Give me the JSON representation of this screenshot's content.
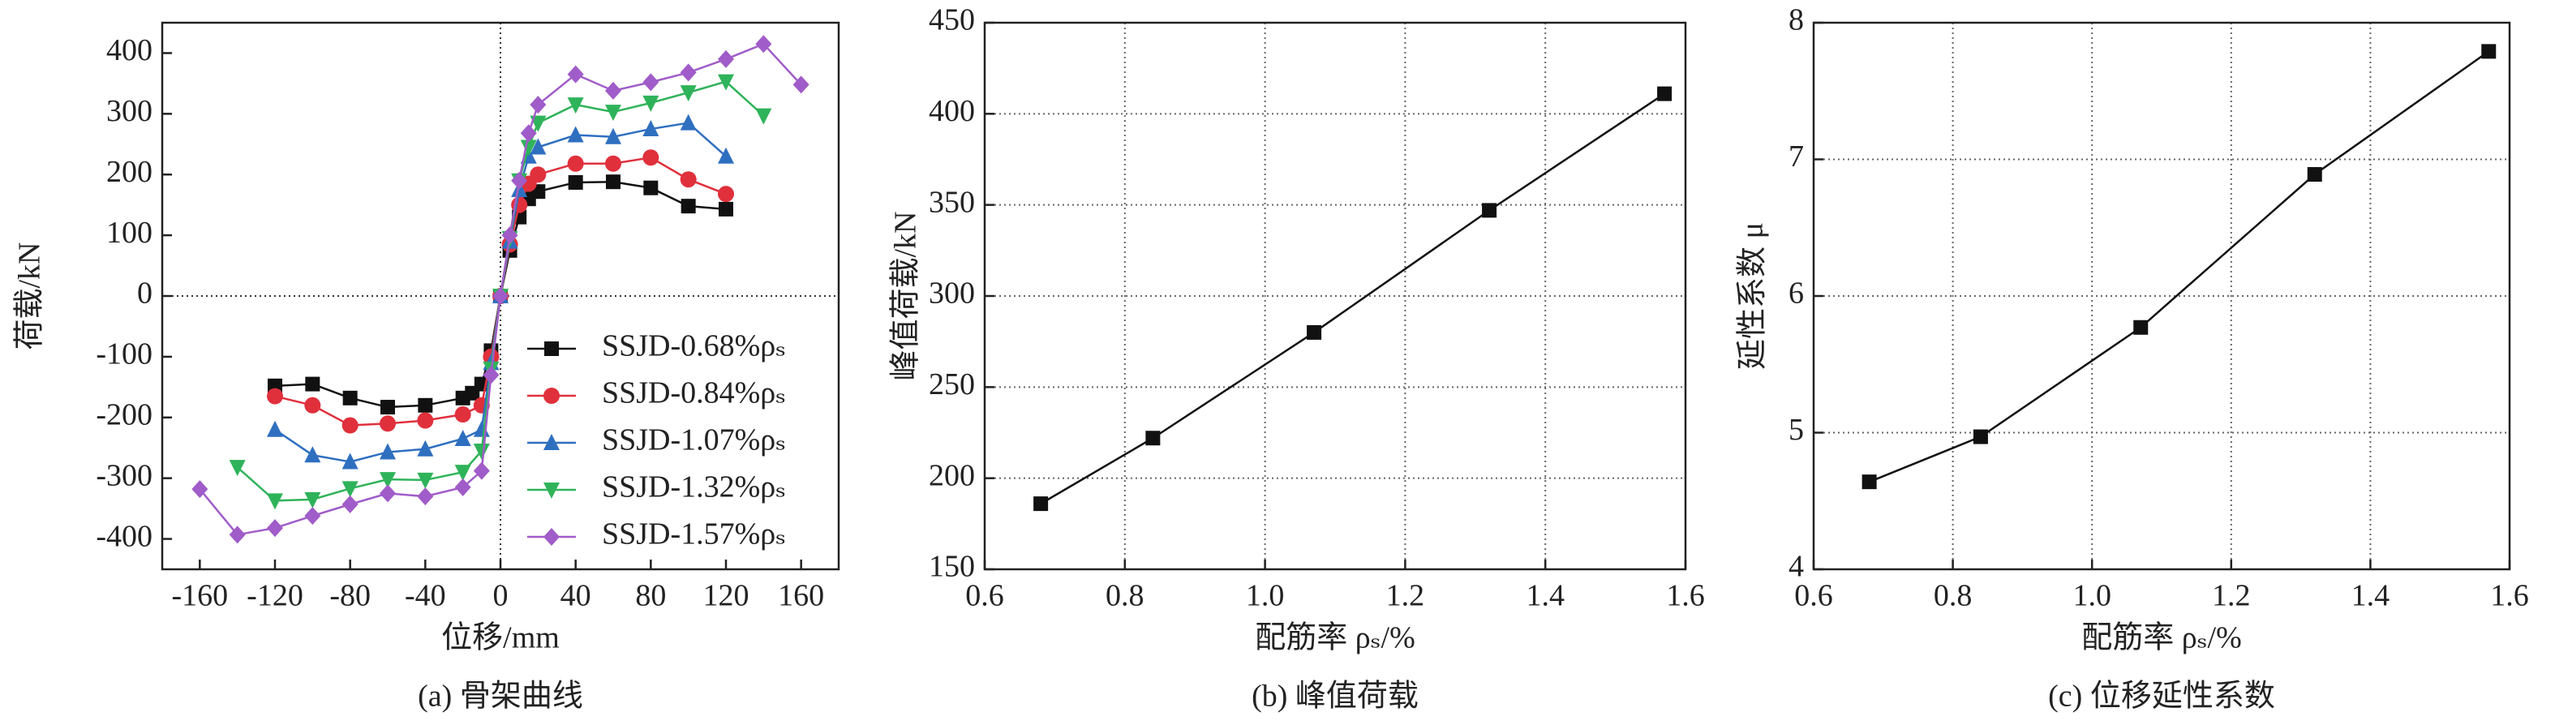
{
  "chart_data": [
    {
      "type": "line",
      "caption": "(a) 骨架曲线",
      "xlabel": "位移/mm",
      "ylabel": "荷载/kN",
      "xlim": [
        -180,
        180
      ],
      "ylim": [
        -450,
        450
      ],
      "xticks": [
        -160,
        -120,
        -80,
        -40,
        0,
        40,
        80,
        120,
        160
      ],
      "yticks": [
        -400,
        -300,
        -200,
        -100,
        0,
        100,
        200,
        300,
        400
      ],
      "zero_lines": true,
      "legend": "lower right",
      "series": [
        {
          "name": "SSJD-0.68%ρₛ",
          "color": "#111111",
          "marker": "square",
          "x": [
            -120,
            -100,
            -80,
            -60,
            -40,
            -20,
            -15,
            -10,
            -5,
            0,
            5,
            10,
            15,
            20,
            40,
            60,
            80,
            100,
            120
          ],
          "values": [
            -148,
            -145,
            -168,
            -183,
            -180,
            -168,
            -160,
            -145,
            -90,
            0,
            75,
            130,
            160,
            172,
            187,
            188,
            178,
            148,
            143
          ]
        },
        {
          "name": "SSJD-0.84%ρₛ",
          "color": "#e0303c",
          "marker": "circle",
          "x": [
            -120,
            -100,
            -80,
            -60,
            -40,
            -20,
            -10,
            -5,
            0,
            5,
            10,
            15,
            20,
            40,
            60,
            80,
            100,
            120
          ],
          "values": [
            -165,
            -180,
            -213,
            -210,
            -205,
            -195,
            -180,
            -100,
            0,
            85,
            150,
            185,
            200,
            218,
            218,
            228,
            192,
            168
          ]
        },
        {
          "name": "SSJD-1.07%ρₛ",
          "color": "#2f6fc0",
          "marker": "triangle-up",
          "x": [
            -120,
            -100,
            -80,
            -60,
            -40,
            -20,
            -10,
            -5,
            0,
            5,
            10,
            15,
            20,
            40,
            60,
            80,
            100,
            120
          ],
          "values": [
            -220,
            -262,
            -273,
            -257,
            -252,
            -235,
            -220,
            -110,
            0,
            90,
            175,
            230,
            245,
            265,
            262,
            275,
            285,
            230
          ]
        },
        {
          "name": "SSJD-1.32%ρₛ",
          "color": "#2fb35a",
          "marker": "triangle-down",
          "x": [
            -140,
            -120,
            -100,
            -80,
            -60,
            -40,
            -20,
            -10,
            -5,
            0,
            5,
            10,
            15,
            20,
            40,
            60,
            80,
            100,
            120,
            140
          ],
          "values": [
            -282,
            -337,
            -335,
            -317,
            -302,
            -303,
            -290,
            -255,
            -120,
            0,
            95,
            190,
            245,
            285,
            315,
            303,
            318,
            335,
            353,
            297
          ]
        },
        {
          "name": "SSJD-1.57%ρₛ",
          "color": "#a05cc8",
          "marker": "diamond",
          "x": [
            -160,
            -140,
            -120,
            -100,
            -80,
            -60,
            -40,
            -20,
            -10,
            -5,
            0,
            5,
            10,
            15,
            20,
            40,
            60,
            80,
            100,
            120,
            140,
            160
          ],
          "values": [
            -318,
            -393,
            -382,
            -362,
            -343,
            -325,
            -330,
            -315,
            -288,
            -130,
            0,
            100,
            190,
            268,
            315,
            365,
            338,
            352,
            368,
            390,
            415,
            348
          ]
        }
      ]
    },
    {
      "type": "line",
      "caption": "(b) 峰值荷载",
      "xlabel": "配筋率 ρₛ/%",
      "ylabel": "峰值荷载/kN",
      "xlim": [
        0.6,
        1.6
      ],
      "ylim": [
        150,
        450
      ],
      "xticks": [
        0.6,
        0.8,
        {
          "value": 1,
          "label": "1.0"
        },
        1.2,
        1.4,
        1.6
      ],
      "yticks": [
        150,
        200,
        250,
        300,
        350,
        400,
        450
      ],
      "grid": true,
      "color": "#111111",
      "marker": "square",
      "x": [
        0.68,
        0.84,
        1.07,
        1.32,
        1.57
      ],
      "values": [
        186,
        222,
        280,
        347,
        411
      ]
    },
    {
      "type": "line",
      "caption": "(c) 位移延性系数",
      "xlabel": "配筋率 ρₛ/%",
      "ylabel": "延性系数 μ",
      "xlim": [
        0.6,
        1.6
      ],
      "ylim": [
        4,
        8
      ],
      "xticks": [
        0.6,
        0.8,
        {
          "value": 1,
          "label": "1.0"
        },
        1.2,
        1.4,
        1.6
      ],
      "yticks": [
        4,
        5,
        6,
        7,
        8
      ],
      "grid": true,
      "color": "#111111",
      "marker": "square",
      "x": [
        0.68,
        0.84,
        1.07,
        1.32,
        1.57
      ],
      "values": [
        4.64,
        4.97,
        5.77,
        6.89,
        7.79
      ]
    }
  ]
}
